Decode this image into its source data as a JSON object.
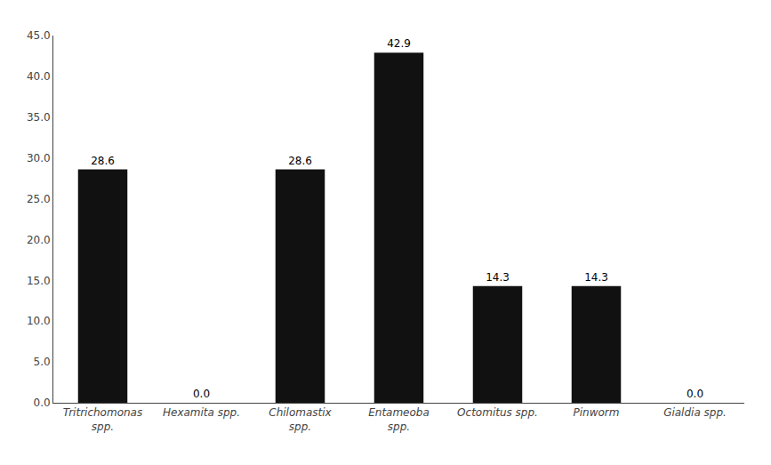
{
  "chart_data": {
    "type": "bar",
    "categories": [
      "Tritrichomonas\nspp.",
      "Hexamita spp.",
      "Chilomastix\nspp.",
      "Entameoba\nspp.",
      "Octomitus spp.",
      "Pinworm",
      "Gialdia spp."
    ],
    "values": [
      28.6,
      0.0,
      28.6,
      42.9,
      14.3,
      14.3,
      0.0
    ],
    "value_labels": [
      "28.6",
      "0.0",
      "28.6",
      "42.9",
      "14.3",
      "14.3",
      "0.0"
    ],
    "data_labels": true,
    "color": "#111111",
    "ylim": [
      0.0,
      45.0
    ],
    "yticks": [
      {
        "value": 0.0,
        "label": "0.0"
      },
      {
        "value": 5.0,
        "label": "5.0"
      },
      {
        "value": 10.0,
        "label": "10.0"
      },
      {
        "value": 15.0,
        "label": "15.0"
      },
      {
        "value": 20.0,
        "label": "20.0"
      },
      {
        "value": 25.0,
        "label": "25.0"
      },
      {
        "value": 30.0,
        "label": "30.0"
      },
      {
        "value": 35.0,
        "label": "35.0"
      },
      {
        "value": 40.0,
        "label": "40.0"
      },
      {
        "value": 45.0,
        "label": "45.0"
      }
    ],
    "grid": false
  }
}
